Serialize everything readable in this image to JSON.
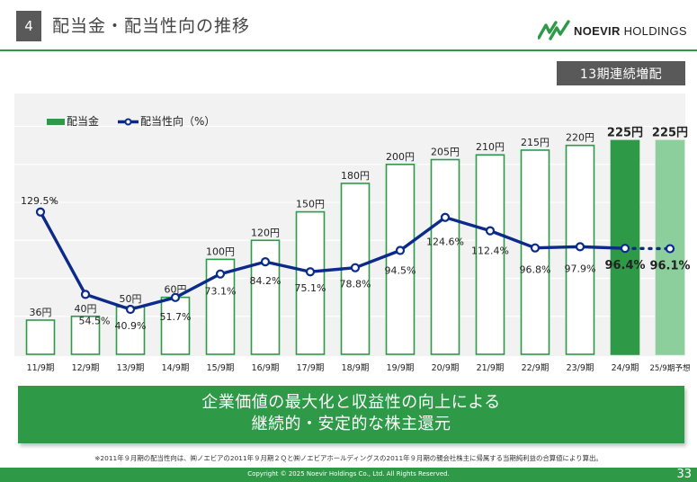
{
  "header": {
    "section_number": "4",
    "title": "配当金・配当性向の推移",
    "logo_brand": "NOEVIR",
    "logo_suffix": "HOLDINGS"
  },
  "badge": "13期連続増配",
  "colors": {
    "accent_green": "#2e9a48",
    "forecast_green": "#8ccf9c",
    "line_navy": "#0b2a8a",
    "badge_gray": "#595959"
  },
  "chart_data": {
    "type": "bar",
    "categories": [
      "11/9期",
      "12/9期",
      "13/9期",
      "14/9期",
      "15/9期",
      "16/9期",
      "17/9期",
      "18/9期",
      "19/9期",
      "20/9期",
      "21/9期",
      "22/9期",
      "23/9期",
      "24/9期",
      "25/9期予想"
    ],
    "series": [
      {
        "name": "配当金",
        "type": "bar",
        "values": [
          36,
          40,
          50,
          60,
          100,
          120,
          150,
          180,
          200,
          205,
          210,
          215,
          220,
          225,
          225
        ],
        "labels": [
          "36円",
          "40円",
          "50円",
          "60円",
          "100円",
          "120円",
          "150円",
          "180円",
          "200円",
          "205円",
          "210円",
          "215円",
          "220円",
          "225円",
          "225円"
        ]
      },
      {
        "name": "配当性向（%）",
        "type": "line",
        "values": [
          129.5,
          54.5,
          40.9,
          51.7,
          73.1,
          84.2,
          75.1,
          78.8,
          94.5,
          124.6,
          112.4,
          96.8,
          97.9,
          96.4,
          96.1
        ],
        "labels": [
          "129.5%",
          "54.5%",
          "40.9%",
          "51.7%",
          "73.1%",
          "84.2%",
          "75.1%",
          "78.8%",
          "94.5%",
          "124.6%",
          "112.4%",
          "96.8%",
          "97.9%",
          "96.4%",
          "96.1%"
        ]
      }
    ],
    "annotation_mark": "※",
    "legend_position": "top-left",
    "grid": true,
    "ylim_bars": [
      0,
      240
    ],
    "ylim_line": [
      0,
      250
    ]
  },
  "message": {
    "line1": "企業価値の最大化と収益性の向上による",
    "line2": "継続的・安定的な株主還元"
  },
  "footnote": "※2011年９月期の配当性向は、㈱ノエビアの2011年９月期２Ｑと㈱ノエビアホールディングスの2011年９月期の親会社株主に帰属する当期純利益の合算値により算出。",
  "footer": {
    "copyright": "Copyright © 2025 Noevir Holdings Co., Ltd. All Rights Reserved.",
    "page": "33"
  }
}
